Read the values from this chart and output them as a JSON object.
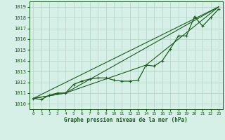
{
  "title": "Graphe pression niveau de la mer (hPa)",
  "bg_color": "#d6f0e8",
  "grid_color": "#b8d8cc",
  "line_color": "#1a5c1a",
  "marker_color": "#1a5c1a",
  "xlim": [
    -0.5,
    23.5
  ],
  "ylim": [
    1009.5,
    1019.5
  ],
  "yticks": [
    1010,
    1011,
    1012,
    1013,
    1014,
    1015,
    1016,
    1017,
    1018,
    1019
  ],
  "xticks": [
    0,
    1,
    2,
    3,
    4,
    5,
    6,
    7,
    8,
    9,
    10,
    11,
    12,
    13,
    14,
    15,
    16,
    17,
    18,
    19,
    20,
    21,
    22,
    23
  ],
  "line1_x": [
    0,
    1,
    2,
    3,
    4,
    5,
    6,
    7,
    8,
    9,
    10,
    11,
    12,
    13,
    14,
    15,
    16,
    17,
    18,
    19,
    20,
    21,
    22,
    23
  ],
  "line1_y": [
    1010.5,
    1010.4,
    1010.8,
    1011.0,
    1011.0,
    1011.8,
    1012.1,
    1012.3,
    1012.4,
    1012.4,
    1012.2,
    1012.1,
    1012.1,
    1012.2,
    1013.6,
    1013.5,
    1014.0,
    1015.1,
    1016.3,
    1016.3,
    1018.1,
    1017.2,
    1018.0,
    1018.8
  ],
  "line2_x": [
    0,
    23
  ],
  "line2_y": [
    1010.5,
    1019.0
  ],
  "line3_x": [
    0,
    4,
    23
  ],
  "line3_y": [
    1010.5,
    1011.0,
    1019.0
  ],
  "line4_x": [
    0,
    4,
    14,
    23
  ],
  "line4_y": [
    1010.5,
    1011.0,
    1013.6,
    1019.0
  ]
}
